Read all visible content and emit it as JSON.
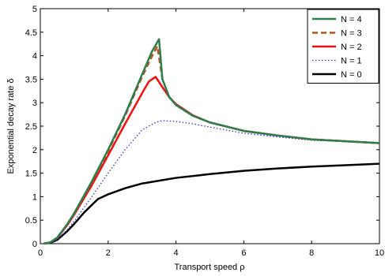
{
  "chart_data": {
    "type": "line",
    "title": "",
    "xlabel": "Transport speed ρ",
    "ylabel": "Exponential decay rate δ",
    "xlim": [
      0,
      10
    ],
    "ylim": [
      0,
      5
    ],
    "xticks": [
      "0",
      "2",
      "4",
      "6",
      "8",
      "10"
    ],
    "yticks": [
      "0",
      "0.5",
      "1",
      "1.5",
      "2",
      "2.5",
      "3",
      "3.5",
      "4",
      "4.5",
      "5"
    ],
    "grid": false,
    "legend_position": "top-right",
    "series": [
      {
        "name": "N = 4",
        "color": "#2e7d4f",
        "style": "solid",
        "x": [
          0.1,
          0.3,
          0.5,
          0.8,
          1.0,
          1.5,
          2.0,
          2.5,
          3.0,
          3.3,
          3.5,
          3.6,
          3.8,
          4.0,
          4.5,
          5.0,
          6.0,
          7.0,
          8.0,
          9.0,
          10.0
        ],
        "y": [
          0.0,
          0.03,
          0.13,
          0.42,
          0.65,
          1.3,
          2.0,
          2.75,
          3.6,
          4.1,
          4.35,
          3.5,
          3.12,
          2.95,
          2.72,
          2.58,
          2.4,
          2.3,
          2.22,
          2.18,
          2.14
        ]
      },
      {
        "name": "N = 3",
        "color": "#b5541e",
        "style": "dashed",
        "x": [
          0.1,
          0.3,
          0.5,
          0.8,
          1.0,
          1.5,
          2.0,
          2.5,
          3.0,
          3.3,
          3.45,
          3.6,
          3.8,
          4.0,
          4.5,
          5.0,
          6.0,
          7.0,
          8.0,
          9.0,
          10.0
        ],
        "y": [
          0.0,
          0.03,
          0.13,
          0.42,
          0.65,
          1.28,
          1.97,
          2.72,
          3.55,
          4.0,
          4.2,
          3.5,
          3.12,
          2.95,
          2.72,
          2.58,
          2.4,
          2.3,
          2.22,
          2.18,
          2.14
        ]
      },
      {
        "name": "N = 2",
        "color": "#ee1111",
        "style": "solid",
        "x": [
          0.1,
          0.3,
          0.5,
          0.8,
          1.0,
          1.5,
          2.0,
          2.5,
          3.0,
          3.2,
          3.4,
          3.6,
          3.8,
          4.0,
          4.5,
          5.0,
          6.0,
          7.0,
          8.0,
          9.0,
          10.0
        ],
        "y": [
          0.0,
          0.03,
          0.12,
          0.4,
          0.62,
          1.22,
          1.88,
          2.55,
          3.2,
          3.45,
          3.55,
          3.33,
          3.12,
          2.97,
          2.73,
          2.58,
          2.4,
          2.3,
          2.22,
          2.18,
          2.14
        ]
      },
      {
        "name": "N = 1",
        "color": "#3333cc",
        "style": "dotted",
        "x": [
          0.1,
          0.3,
          0.5,
          0.8,
          1.0,
          1.5,
          2.0,
          2.5,
          3.0,
          3.4,
          3.6,
          4.0,
          4.5,
          5.0,
          6.0,
          7.0,
          8.0,
          9.0,
          10.0
        ],
        "y": [
          0.0,
          0.02,
          0.08,
          0.3,
          0.48,
          0.98,
          1.5,
          2.0,
          2.42,
          2.58,
          2.62,
          2.6,
          2.55,
          2.48,
          2.35,
          2.27,
          2.2,
          2.17,
          2.14
        ]
      },
      {
        "name": "N = 0",
        "color": "#000000",
        "style": "solid",
        "x": [
          0.1,
          0.3,
          0.5,
          0.8,
          1.0,
          1.3,
          1.7,
          2.0,
          2.5,
          3.0,
          4.0,
          5.0,
          6.0,
          7.0,
          8.0,
          9.0,
          10.0
        ],
        "y": [
          0.0,
          0.02,
          0.08,
          0.27,
          0.42,
          0.67,
          0.95,
          1.05,
          1.18,
          1.28,
          1.4,
          1.48,
          1.55,
          1.6,
          1.64,
          1.67,
          1.7
        ]
      }
    ]
  }
}
